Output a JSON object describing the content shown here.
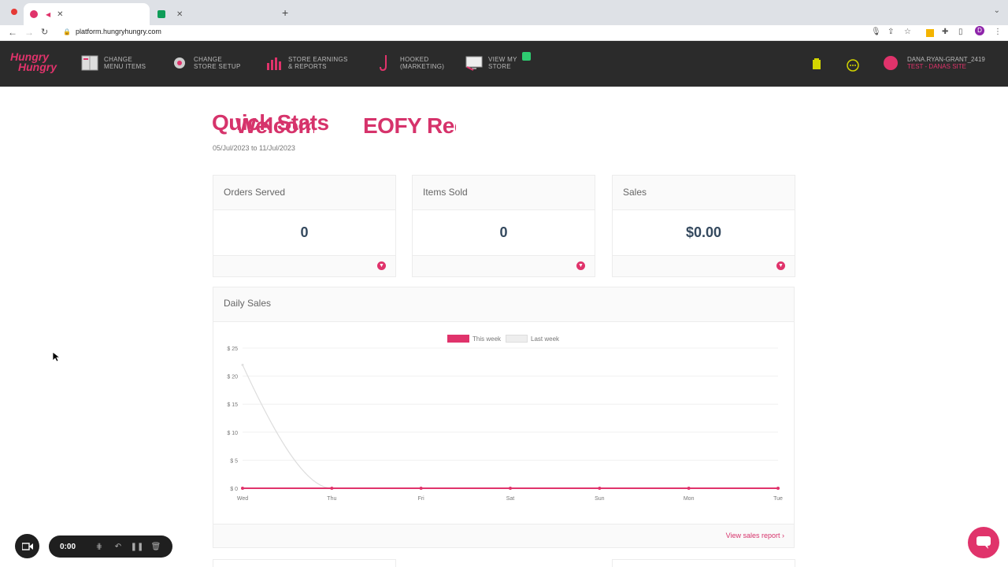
{
  "browser": {
    "tabs": [
      {
        "title": "Welcome dana.ryan-grant",
        "active": true,
        "favicon_color": "#e0336b"
      },
      {
        "title": "EOFY Reconciliation Report - G",
        "active": false,
        "favicon_color": "#0f9d58"
      }
    ],
    "url": "platform.hungryhungry.com",
    "profile_initial": "D"
  },
  "app": {
    "logo_line1": "Hungry",
    "logo_line2": "Hungry",
    "nav": [
      {
        "line1": "CHANGE",
        "line2": "MENU ITEMS",
        "icon": "menu-book-icon"
      },
      {
        "line1": "CHANGE",
        "line2": "STORE SETUP",
        "icon": "gear-icon"
      },
      {
        "line1": "STORE EARNINGS",
        "line2": "& REPORTS",
        "icon": "bar-chart-icon"
      },
      {
        "line1": "HOOKED",
        "line2": "(MARKETING)",
        "icon": "hook-icon"
      },
      {
        "line1": "VIEW MY",
        "line2": "STORE",
        "icon": "monitor-icon"
      }
    ],
    "user": {
      "name": "DANA.RYAN-GRANT_2419",
      "site": "TEST - DANAS SITE"
    },
    "accent": "#e0336b"
  },
  "main": {
    "title": "Quick Stats",
    "date_range": "05/Jul/2023 to 11/Jul/2023",
    "cards": [
      {
        "label": "Orders Served",
        "value": "0"
      },
      {
        "label": "Items Sold",
        "value": "0"
      },
      {
        "label": "Sales",
        "value": "$0.00"
      }
    ],
    "daily": {
      "title": "Daily Sales",
      "link": "View sales report"
    }
  },
  "chart_data": {
    "type": "line",
    "categories": [
      "Wed",
      "Thu",
      "Fri",
      "Sat",
      "Sun",
      "Mon",
      "Tue"
    ],
    "series": [
      {
        "name": "This week",
        "color": "#e0336b",
        "values": [
          0,
          0,
          0,
          0,
          0,
          0,
          0
        ]
      },
      {
        "name": "Last week",
        "color": "#dddddd",
        "values": [
          22,
          0,
          0,
          0,
          0,
          0,
          0
        ]
      }
    ],
    "yticks": [
      "$ 0",
      "$ 5",
      "$ 10",
      "$ 15",
      "$ 20",
      "$ 25"
    ],
    "ylim": [
      0,
      25
    ],
    "legend": "top-center",
    "grid": true
  },
  "recorder": {
    "time": "0:00"
  }
}
